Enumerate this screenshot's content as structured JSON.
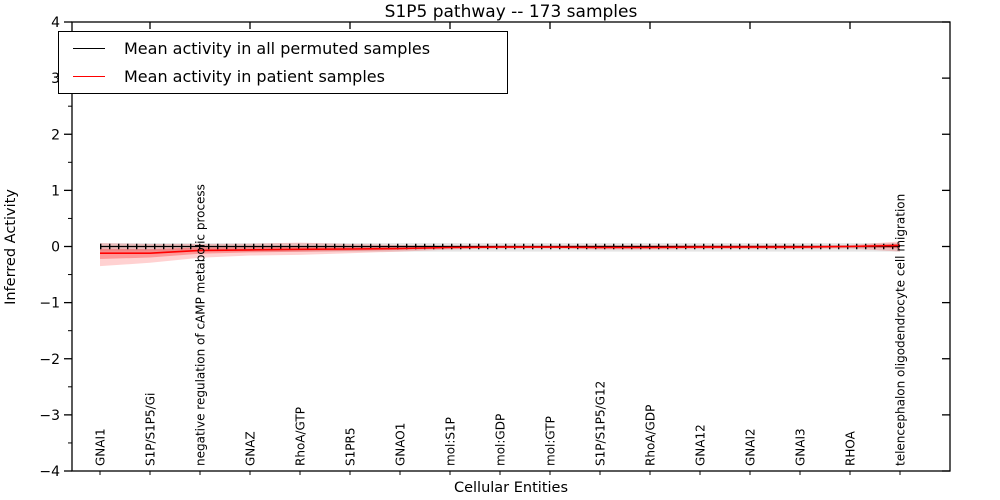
{
  "chart_data": {
    "type": "line",
    "title": "S1P5 pathway -- 173 samples",
    "xlabel": "Cellular Entities",
    "ylabel": "Inferred Activity",
    "ylim": [
      -4,
      4
    ],
    "yticks": [
      4,
      3,
      2,
      1,
      0,
      -1,
      -2,
      -3,
      -4
    ],
    "ytick_labels": [
      "4",
      "3",
      "2",
      "1",
      "0",
      "−1",
      "−2",
      "−3",
      "−4"
    ],
    "grid": false,
    "legend_position": "upper left",
    "legend": [
      {
        "label": "Mean activity in all permuted samples",
        "color": "#000000"
      },
      {
        "label": "Mean activity in patient samples",
        "color": "#ff0000"
      }
    ],
    "categories": [
      "GNAI1",
      "S1P/S1P5/Gi",
      "negative regulation of cAMP metabolic process",
      "GNAZ",
      "RhoA/GTP",
      "S1PR5",
      "GNAO1",
      "mol:S1P",
      "mol:GDP",
      "mol:GTP",
      "S1P/S1P5/G12",
      "RhoA/GDP",
      "GNA12",
      "GNAI2",
      "GNAI3",
      "RHOA",
      "telencephalon oligodendrocyte cell migration"
    ],
    "series": [
      {
        "name": "Mean activity in all permuted samples",
        "color": "#000000",
        "band_color": "rgba(0,0,0,0.10)",
        "values": [
          0,
          0,
          0,
          0,
          0,
          0,
          0,
          0,
          0,
          0,
          0,
          0,
          0,
          0,
          0,
          0,
          0
        ],
        "band_upper": [
          0.06,
          0.06,
          0.06,
          0.06,
          0.06,
          0.06,
          0.06,
          0.06,
          0.06,
          0.06,
          0.06,
          0.06,
          0.06,
          0.06,
          0.06,
          0.06,
          0.06
        ],
        "band_lower": [
          -0.09,
          -0.09,
          -0.09,
          -0.09,
          -0.09,
          -0.09,
          -0.09,
          -0.09,
          -0.09,
          -0.09,
          -0.09,
          -0.09,
          -0.09,
          -0.09,
          -0.09,
          -0.09,
          -0.09
        ]
      },
      {
        "name": "Mean activity in patient samples",
        "color": "#ff0000",
        "band_color": "rgba(255,0,0,0.18)",
        "band_inner_color": "rgba(255,0,0,0.28)",
        "values": [
          -0.12,
          -0.12,
          -0.07,
          -0.06,
          -0.05,
          -0.045,
          -0.036,
          -0.018,
          -0.01,
          -0.01,
          -0.018,
          -0.018,
          -0.01,
          -0.01,
          -0.01,
          0.0,
          0.02
        ],
        "band_upper": [
          0.06,
          0.045,
          0.045,
          0.05,
          0.07,
          0.045,
          0.027,
          0.018,
          0.018,
          0.018,
          0.027,
          0.027,
          0.027,
          0.027,
          0.027,
          0.027,
          0.09
        ],
        "band_lower": [
          -0.35,
          -0.29,
          -0.2,
          -0.16,
          -0.15,
          -0.12,
          -0.09,
          -0.054,
          -0.036,
          -0.036,
          -0.054,
          -0.054,
          -0.045,
          -0.045,
          -0.045,
          -0.036,
          -0.09
        ]
      }
    ]
  }
}
